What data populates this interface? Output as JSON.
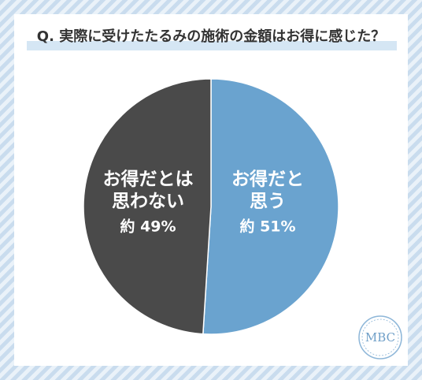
{
  "chart_data": {
    "type": "pie",
    "title": "Q. 実際に受けたたるみの施術の金額はお得に感じた？",
    "categories": [
      [
        "お得だと",
        "思う"
      ],
      [
        "お得だとは",
        "思わない"
      ]
    ],
    "values": [
      51,
      49
    ],
    "value_labels": [
      "約 51%",
      "約 49%"
    ],
    "colors": [
      "#6aa3cf",
      "#4a4a4a"
    ],
    "logo": "MBC"
  }
}
